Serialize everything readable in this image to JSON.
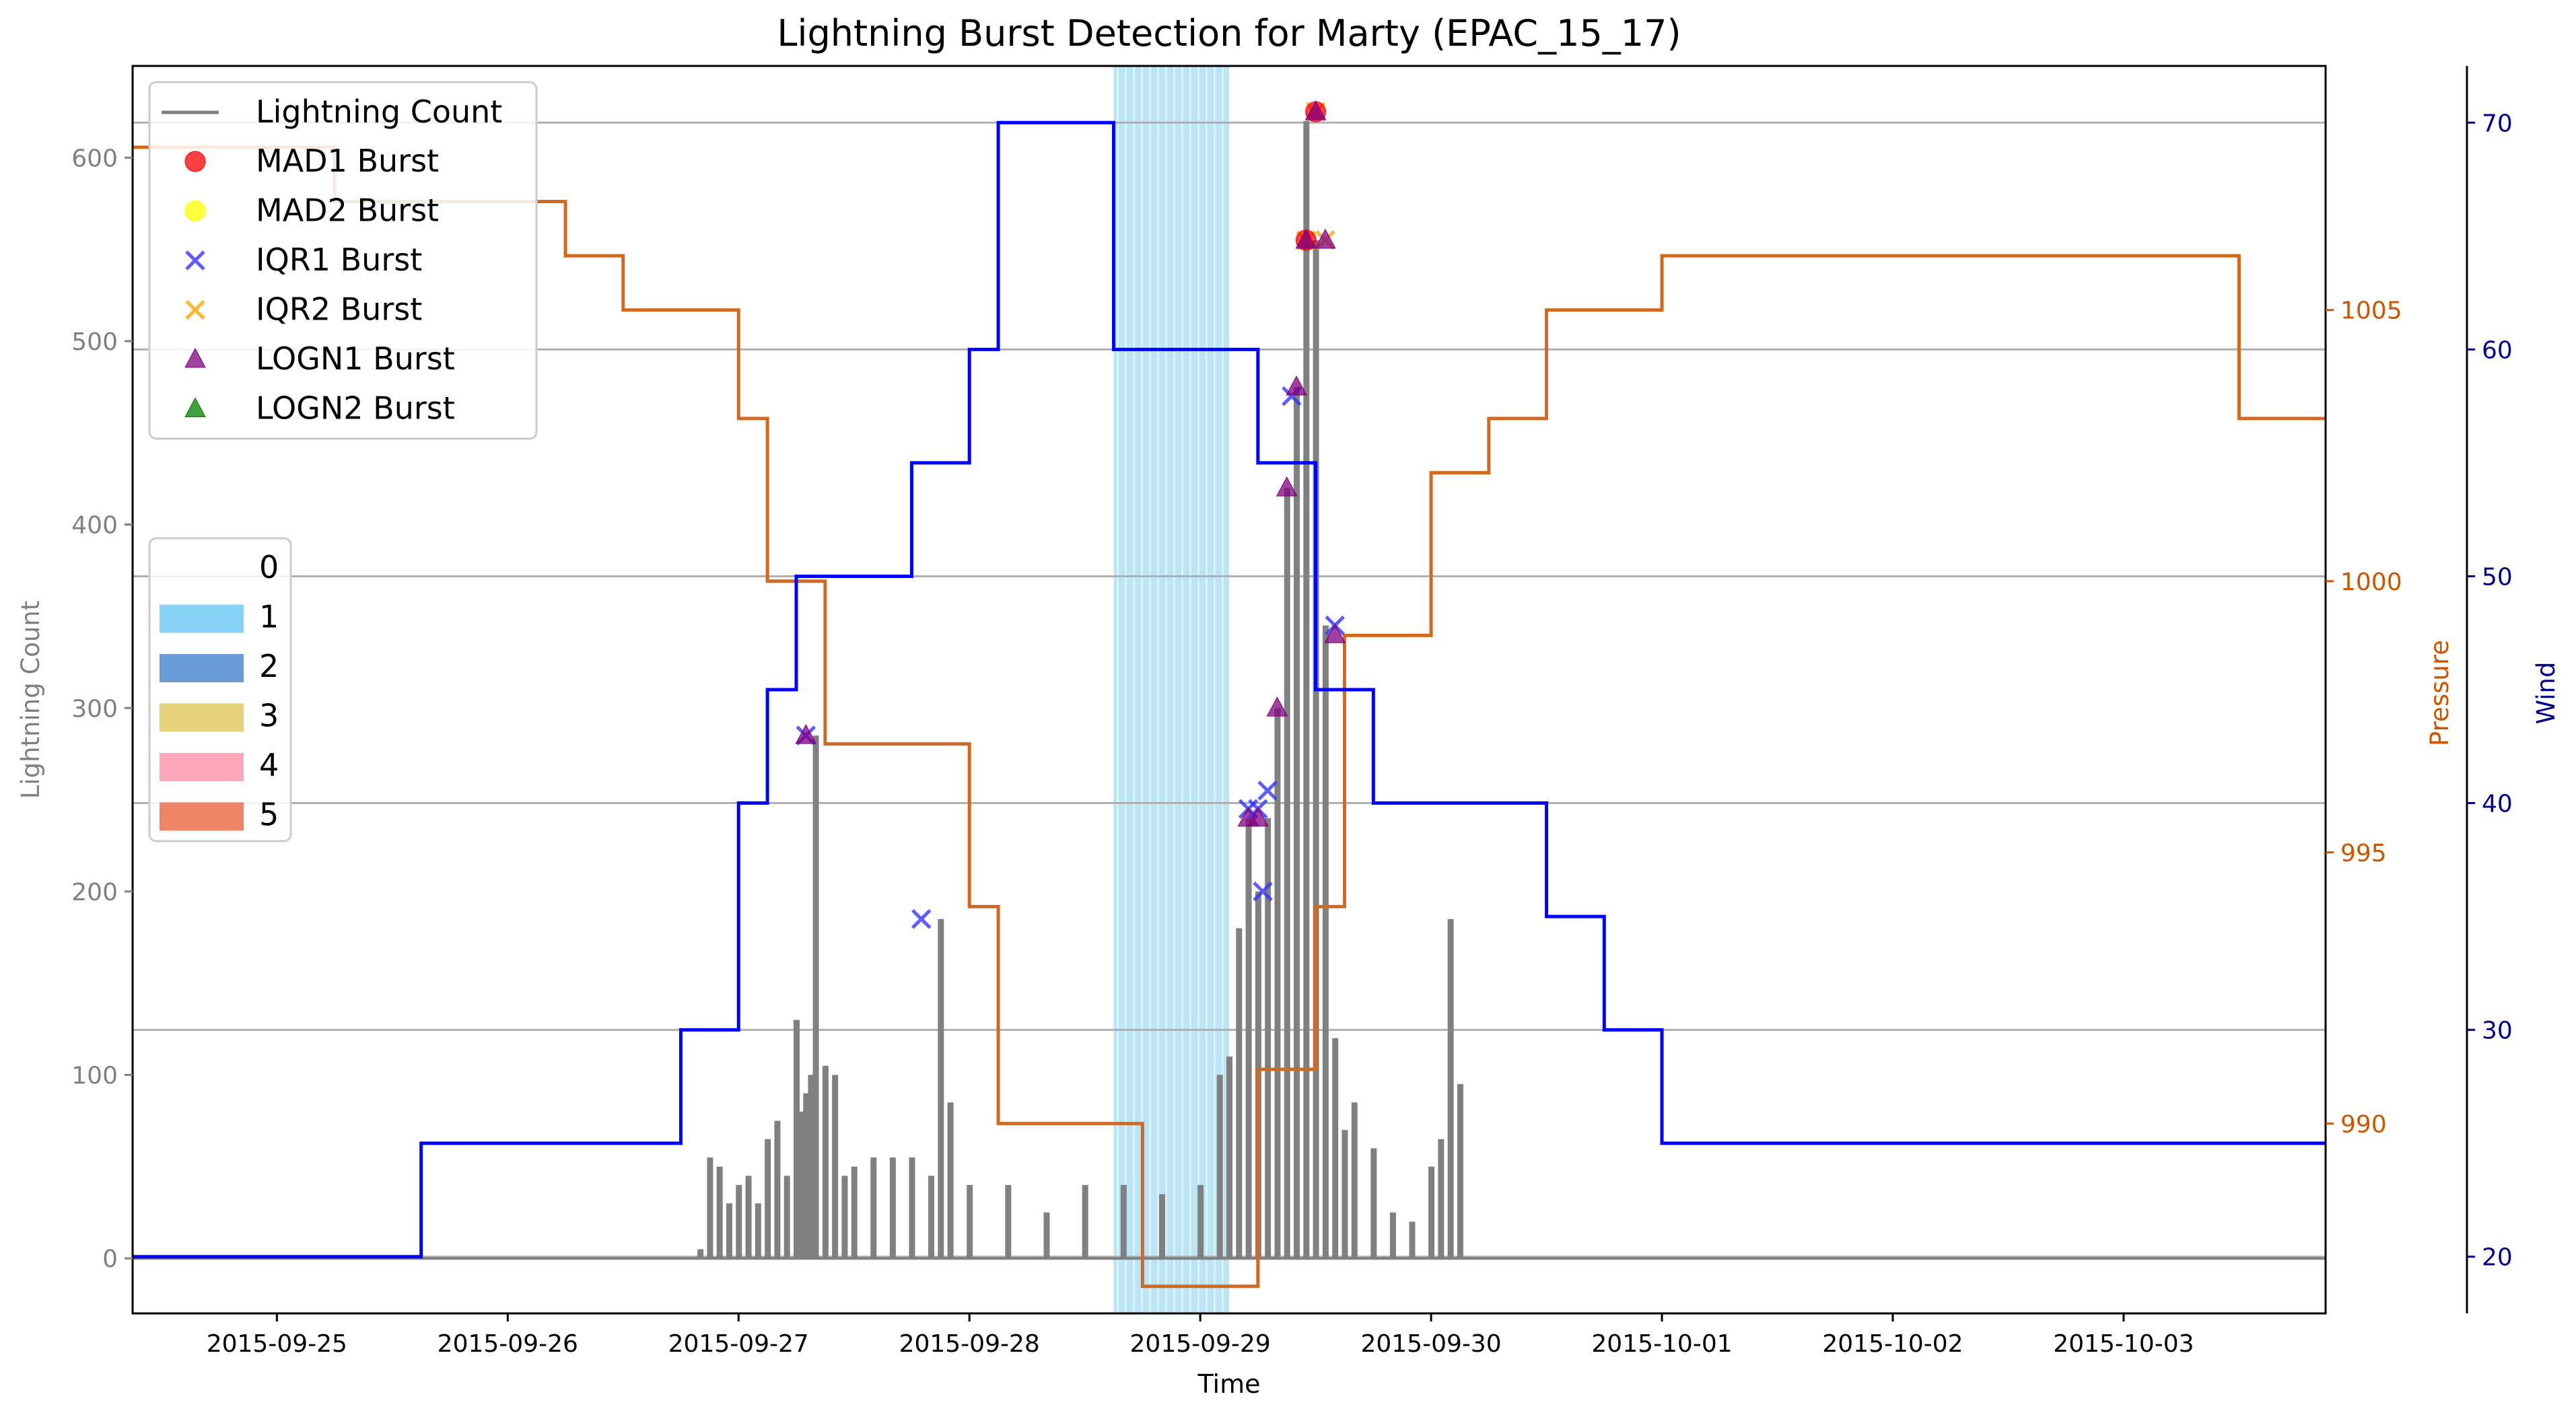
{
  "chart_data": {
    "type": "line",
    "title": "Lightning Burst Detection for Marty (EPAC_15_17)",
    "xlabel": "Time",
    "ylabel_left": "Lightning Count",
    "ylabel_pressure": "Pressure",
    "ylabel_wind": "Wind",
    "x_tick_labels": [
      "2015-09-25",
      "2015-09-26",
      "2015-09-27",
      "2015-09-28",
      "2015-09-29",
      "2015-09-30",
      "2015-10-01",
      "2015-10-02",
      "2015-10-03"
    ],
    "x_range": [
      "2015-09-24 09:00",
      "2015-10-03 21:00"
    ],
    "left_axis": {
      "ticks": [
        0,
        100,
        200,
        300,
        400,
        500,
        600
      ],
      "lim": [
        -30,
        650
      ],
      "color": "#808080"
    },
    "pressure_axis": {
      "ticks": [
        990,
        995,
        1000,
        1005
      ],
      "lim": [
        986.5,
        1009.5
      ],
      "color": "#cc5500"
    },
    "wind_axis": {
      "ticks": [
        20,
        30,
        40,
        50,
        60,
        70
      ],
      "lim": [
        17.5,
        72.5
      ],
      "color": "#00008b"
    },
    "grid": "horizontal",
    "colors": {
      "lightning": "#808080",
      "pressure": "#d2691e",
      "wind": "#0000ff",
      "intensity_span": "#87ceeb"
    },
    "lightning_legend": {
      "label": "Lightning Count",
      "markers": [
        {
          "label": "MAD1 Burst",
          "marker": "circle",
          "color": "#ff0000"
        },
        {
          "label": "MAD2 Burst",
          "marker": "circle",
          "color": "#ffff00"
        },
        {
          "label": "IQR1 Burst",
          "marker": "x",
          "color": "#3333ff"
        },
        {
          "label": "IQR2 Burst",
          "marker": "x",
          "color": "#ffa500"
        },
        {
          "label": "LOGN1 Burst",
          "marker": "triangle",
          "color": "#800080"
        },
        {
          "label": "LOGN2 Burst",
          "marker": "triangle",
          "color": "#008000"
        }
      ]
    },
    "category_legend": [
      {
        "label": "0",
        "color": "none"
      },
      {
        "label": "1",
        "color": "#87d3f8"
      },
      {
        "label": "2",
        "color": "#6b9bd6"
      },
      {
        "label": "3",
        "color": "#e6d27a"
      },
      {
        "label": "4",
        "color": "#ffa6b8"
      },
      {
        "label": "5",
        "color": "#f08466"
      }
    ],
    "series": [
      {
        "name": "Lightning Count",
        "x": [
          "2015-09-26 20:00",
          "2015-09-26 21:00",
          "2015-09-26 22:00",
          "2015-09-26 23:00",
          "2015-09-27 00:00",
          "2015-09-27 01:00",
          "2015-09-27 02:00",
          "2015-09-27 03:00",
          "2015-09-27 04:00",
          "2015-09-27 05:00",
          "2015-09-27 06:00",
          "2015-09-27 06:30",
          "2015-09-27 07:00",
          "2015-09-27 07:30",
          "2015-09-27 08:00",
          "2015-09-27 09:00",
          "2015-09-27 10:00",
          "2015-09-27 11:00",
          "2015-09-27 12:00",
          "2015-09-27 14:00",
          "2015-09-27 16:00",
          "2015-09-27 18:00",
          "2015-09-27 20:00",
          "2015-09-27 21:00",
          "2015-09-27 22:00",
          "2015-09-28 00:00",
          "2015-09-28 04:00",
          "2015-09-28 08:00",
          "2015-09-28 12:00",
          "2015-09-28 16:00",
          "2015-09-28 20:00",
          "2015-09-29 00:00",
          "2015-09-29 02:00",
          "2015-09-29 03:00",
          "2015-09-29 04:00",
          "2015-09-29 05:00",
          "2015-09-29 06:00",
          "2015-09-29 07:00",
          "2015-09-29 08:00",
          "2015-09-29 09:00",
          "2015-09-29 10:00",
          "2015-09-29 11:00",
          "2015-09-29 12:00",
          "2015-09-29 13:00",
          "2015-09-29 14:00",
          "2015-09-29 15:00",
          "2015-09-29 16:00",
          "2015-09-29 18:00",
          "2015-09-29 20:00",
          "2015-09-29 22:00",
          "2015-09-30 00:00",
          "2015-09-30 01:00",
          "2015-09-30 02:00",
          "2015-09-30 03:00"
        ],
        "values": [
          5,
          55,
          50,
          30,
          40,
          45,
          30,
          65,
          75,
          45,
          130,
          80,
          90,
          100,
          285,
          105,
          100,
          45,
          50,
          55,
          55,
          55,
          45,
          185,
          85,
          40,
          40,
          25,
          40,
          40,
          35,
          40,
          100,
          110,
          180,
          240,
          200,
          240,
          300,
          420,
          475,
          620,
          555,
          345,
          120,
          70,
          85,
          60,
          25,
          20,
          50,
          65,
          185,
          95
        ]
      },
      {
        "name": "Pressure",
        "x": [
          "2015-09-24 09:00",
          "2015-09-25 06:00",
          "2015-09-26 06:00",
          "2015-09-26 12:00",
          "2015-09-27 00:00",
          "2015-09-27 03:00",
          "2015-09-27 09:00",
          "2015-09-28 00:00",
          "2015-09-28 03:00",
          "2015-09-28 18:00",
          "2015-09-29 06:00",
          "2015-09-29 12:00",
          "2015-09-29 15:00",
          "2015-09-30 00:00",
          "2015-09-30 06:00",
          "2015-09-30 12:00",
          "2015-10-01 00:00",
          "2015-10-03 12:00"
        ],
        "values": [
          1008,
          1007,
          1006,
          1005,
          1003,
          1000,
          997,
          994,
          990,
          987,
          991,
          994,
          999,
          1002,
          1003,
          1005,
          1006,
          1003
        ]
      },
      {
        "name": "Wind",
        "x": [
          "2015-09-24 09:00",
          "2015-09-25 15:00",
          "2015-09-26 18:00",
          "2015-09-27 00:00",
          "2015-09-27 03:00",
          "2015-09-27 06:00",
          "2015-09-27 18:00",
          "2015-09-28 00:00",
          "2015-09-28 03:00",
          "2015-09-28 15:00",
          "2015-09-29 06:00",
          "2015-09-29 12:00",
          "2015-09-29 18:00",
          "2015-09-30 12:00",
          "2015-09-30 18:00",
          "2015-10-01 00:00",
          "2015-10-03 21:00"
        ],
        "values": [
          20,
          25,
          30,
          40,
          45,
          50,
          55,
          60,
          70,
          60,
          55,
          45,
          40,
          35,
          30,
          25,
          25
        ]
      }
    ],
    "burst_markers": [
      {
        "type": "IQR1",
        "x": "2015-09-27 07:00",
        "y": 285
      },
      {
        "type": "LOGN1",
        "x": "2015-09-27 07:00",
        "y": 285
      },
      {
        "type": "IQR1",
        "x": "2015-09-27 19:00",
        "y": 185
      },
      {
        "type": "IQR1",
        "x": "2015-09-29 05:00",
        "y": 245
      },
      {
        "type": "LOGN1",
        "x": "2015-09-29 05:00",
        "y": 240
      },
      {
        "type": "IQR1",
        "x": "2015-09-29 06:00",
        "y": 245
      },
      {
        "type": "LOGN1",
        "x": "2015-09-29 06:00",
        "y": 240
      },
      {
        "type": "IQR1",
        "x": "2015-09-29 06:30",
        "y": 200
      },
      {
        "type": "IQR1",
        "x": "2015-09-29 07:00",
        "y": 255
      },
      {
        "type": "LOGN1",
        "x": "2015-09-29 08:00",
        "y": 300
      },
      {
        "type": "LOGN1",
        "x": "2015-09-29 09:00",
        "y": 420
      },
      {
        "type": "IQR1",
        "x": "2015-09-29 09:30",
        "y": 470
      },
      {
        "type": "LOGN1",
        "x": "2015-09-29 10:00",
        "y": 475
      },
      {
        "type": "IQR2",
        "x": "2015-09-29 11:00",
        "y": 555
      },
      {
        "type": "MAD1",
        "x": "2015-09-29 11:00",
        "y": 555
      },
      {
        "type": "LOGN1",
        "x": "2015-09-29 11:00",
        "y": 555
      },
      {
        "type": "IQR2",
        "x": "2015-09-29 12:00",
        "y": 625
      },
      {
        "type": "MAD1",
        "x": "2015-09-29 12:00",
        "y": 625
      },
      {
        "type": "LOGN1",
        "x": "2015-09-29 12:00",
        "y": 625
      },
      {
        "type": "IQR2",
        "x": "2015-09-29 13:00",
        "y": 555
      },
      {
        "type": "LOGN1",
        "x": "2015-09-29 13:00",
        "y": 555
      },
      {
        "type": "IQR1",
        "x": "2015-09-29 14:00",
        "y": 345
      },
      {
        "type": "LOGN1",
        "x": "2015-09-29 14:00",
        "y": 340
      }
    ],
    "intensity_span": {
      "category": "1",
      "start": "2015-09-28 15:00",
      "end": "2015-09-29 03:00"
    }
  }
}
